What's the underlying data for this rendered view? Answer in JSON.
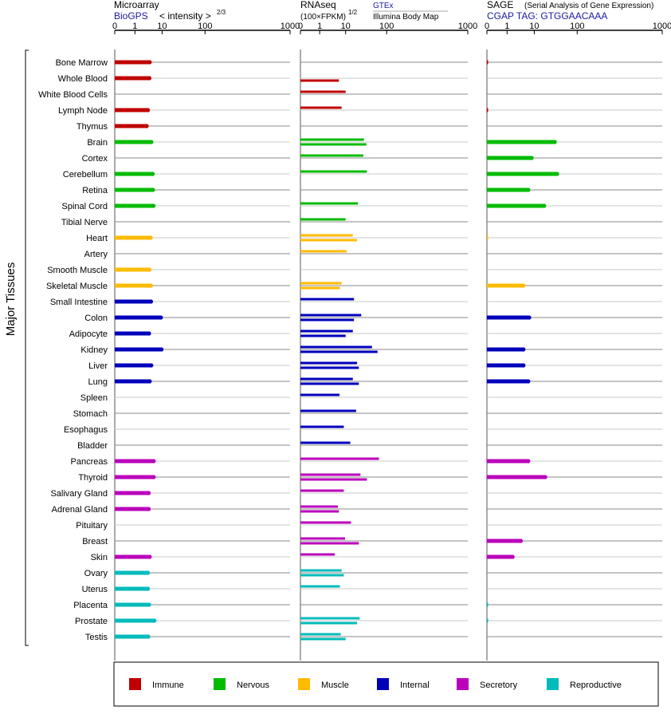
{
  "side_label": "Major Tissues",
  "panels": [
    {
      "title": "Microarray",
      "subtitle": "BioGPS",
      "scale_label": "< intensity >",
      "scale_exponent": "2/3"
    },
    {
      "title": "RNAseq",
      "scale_label": "(100×FPKM)",
      "scale_exponent": "1/2",
      "source_top": "GTEx",
      "source_bottom": "Illumina Body Map"
    },
    {
      "title": "SAGE",
      "title_note": "(Serial Analysis of Gene Expression)",
      "subtitle": "CGAP TAG: GTGGAACAAA"
    }
  ],
  "tick_labels": [
    "0",
    "1",
    "10",
    "100",
    "1000"
  ],
  "legend": [
    {
      "label": "Immune",
      "color": "#c00000"
    },
    {
      "label": "Nervous",
      "color": "#00bb00"
    },
    {
      "label": "Muscle",
      "color": "#ffbb00"
    },
    {
      "label": "Internal",
      "color": "#0000bb"
    },
    {
      "label": "Secretory",
      "color": "#bb00bb"
    },
    {
      "label": "Reproductive",
      "color": "#00bbbb"
    }
  ],
  "chart_data": {
    "type": "bar",
    "orientation": "horizontal",
    "x_scale": "transformed (0, 1, 10, 100, 1000)",
    "xlim": [
      0,
      1000
    ],
    "grid": true,
    "legend_position": "bottom",
    "tissues": [
      {
        "name": "Bone Marrow",
        "group": "Immune",
        "microarray": 3.5,
        "gtex": null,
        "bodymap": null,
        "sage": 0.01
      },
      {
        "name": "Whole Blood",
        "group": "Immune",
        "microarray": 3.4,
        "gtex": null,
        "bodymap": 5.5,
        "sage": null
      },
      {
        "name": "White Blood Cells",
        "group": "Immune",
        "microarray": null,
        "gtex": 10,
        "bodymap": null,
        "sage": null
      },
      {
        "name": "Lymph Node",
        "group": "Immune",
        "microarray": 3.0,
        "gtex": 7,
        "bodymap": null,
        "sage": 0.01
      },
      {
        "name": "Thymus",
        "group": "Immune",
        "microarray": 2.7,
        "gtex": null,
        "bodymap": null,
        "sage": null
      },
      {
        "name": "Brain",
        "group": "Nervous",
        "microarray": 4.0,
        "gtex": 28,
        "bodymap": 32,
        "sage": 30
      },
      {
        "name": "Cortex",
        "group": "Nervous",
        "microarray": null,
        "gtex": 27,
        "bodymap": null,
        "sage": 8
      },
      {
        "name": "Cerebellum",
        "group": "Nervous",
        "microarray": 4.5,
        "gtex": 33,
        "bodymap": null,
        "sage": 34
      },
      {
        "name": "Retina",
        "group": "Nervous",
        "microarray": 4.6,
        "gtex": null,
        "bodymap": null,
        "sage": 6
      },
      {
        "name": "Spinal Cord",
        "group": "Nervous",
        "microarray": 4.8,
        "gtex": 20,
        "bodymap": null,
        "sage": 17
      },
      {
        "name": "Tibial Nerve",
        "group": "Nervous",
        "microarray": null,
        "gtex": 10,
        "bodymap": null,
        "sage": null
      },
      {
        "name": "Heart",
        "group": "Muscle",
        "microarray": 3.8,
        "gtex": 15,
        "bodymap": 19,
        "sage": 0.01
      },
      {
        "name": "Artery",
        "group": "Muscle",
        "microarray": null,
        "gtex": 10.5,
        "bodymap": null,
        "sage": null
      },
      {
        "name": "Smooth Muscle",
        "group": "Muscle",
        "microarray": 3.4,
        "gtex": null,
        "bodymap": null,
        "sage": null
      },
      {
        "name": "Skeletal Muscle",
        "group": "Muscle",
        "microarray": 3.9,
        "gtex": 7,
        "bodymap": 6,
        "sage": 4
      },
      {
        "name": "Small Intestine",
        "group": "Internal",
        "microarray": 3.9,
        "gtex": 16,
        "bodymap": null,
        "sage": null
      },
      {
        "name": "Colon",
        "group": "Internal",
        "microarray": 9,
        "gtex": 24,
        "bodymap": 16,
        "sage": 6.5
      },
      {
        "name": "Adipocyte",
        "group": "Internal",
        "microarray": 3.3,
        "gtex": 15,
        "bodymap": 10,
        "sage": null
      },
      {
        "name": "Kidney",
        "group": "Internal",
        "microarray": 9.5,
        "gtex": 44,
        "bodymap": 60,
        "sage": 4
      },
      {
        "name": "Liver",
        "group": "Internal",
        "microarray": 4.0,
        "gtex": 19,
        "bodymap": 21,
        "sage": 4
      },
      {
        "name": "Lung",
        "group": "Internal",
        "microarray": 3.5,
        "gtex": 15,
        "bodymap": 21,
        "sage": 6
      },
      {
        "name": "Spleen",
        "group": "Internal",
        "microarray": null,
        "gtex": 5.8,
        "bodymap": null,
        "sage": null
      },
      {
        "name": "Stomach",
        "group": "Internal",
        "microarray": null,
        "gtex": 18,
        "bodymap": null,
        "sage": null
      },
      {
        "name": "Esophagus",
        "group": "Internal",
        "microarray": null,
        "gtex": 8.5,
        "bodymap": null,
        "sage": null
      },
      {
        "name": "Bladder",
        "group": "Internal",
        "microarray": null,
        "gtex": 13,
        "bodymap": null,
        "sage": null
      },
      {
        "name": "Pancreas",
        "group": "Secretory",
        "microarray": 4.9,
        "gtex": 65,
        "bodymap": null,
        "sage": 6
      },
      {
        "name": "Thyroid",
        "group": "Secretory",
        "microarray": 4.9,
        "gtex": 23,
        "bodymap": 33,
        "sage": 18
      },
      {
        "name": "Salivary Gland",
        "group": "Secretory",
        "microarray": 3.2,
        "gtex": 8.5,
        "bodymap": null,
        "sage": null
      },
      {
        "name": "Adrenal Gland",
        "group": "Secretory",
        "microarray": 3.2,
        "gtex": 5,
        "bodymap": 5.5,
        "sage": null
      },
      {
        "name": "Pituitary",
        "group": "Secretory",
        "microarray": null,
        "gtex": 13.5,
        "bodymap": null,
        "sage": null
      },
      {
        "name": "Breast",
        "group": "Secretory",
        "microarray": null,
        "gtex": 9.5,
        "bodymap": 21,
        "sage": 3.2
      },
      {
        "name": "Skin",
        "group": "Secretory",
        "microarray": 3.5,
        "gtex": 3.8,
        "bodymap": null,
        "sage": 1.6
      },
      {
        "name": "Ovary",
        "group": "Reproductive",
        "microarray": 3.0,
        "gtex": 7,
        "bodymap": 8.5,
        "sage": null
      },
      {
        "name": "Uterus",
        "group": "Reproductive",
        "microarray": 3.0,
        "gtex": 6,
        "bodymap": null,
        "sage": null
      },
      {
        "name": "Placenta",
        "group": "Reproductive",
        "microarray": 3.3,
        "gtex": null,
        "bodymap": null,
        "sage": 0.01
      },
      {
        "name": "Prostate",
        "group": "Reproductive",
        "microarray": 5.2,
        "gtex": 22,
        "bodymap": 19,
        "sage": 0.01
      },
      {
        "name": "Testis",
        "group": "Reproductive",
        "microarray": 3.1,
        "gtex": 6.5,
        "bodymap": 10,
        "sage": null
      }
    ]
  }
}
